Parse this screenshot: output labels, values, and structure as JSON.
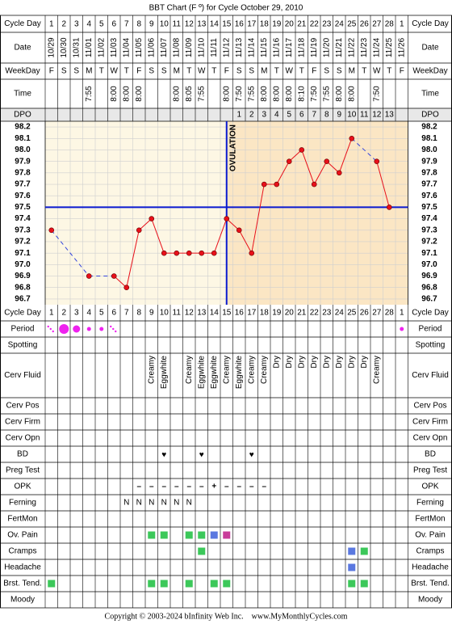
{
  "chart_data": {
    "type": "line",
    "title": "BBT Chart (F º) for Cycle October 29, 2010",
    "top_rows": [
      "Cycle Day",
      "Date",
      "WeekDay",
      "Time",
      "DPO"
    ],
    "bottom_rows": [
      "Cycle Day",
      "Period",
      "Spotting",
      "Cerv Fluid",
      "Cerv Pos",
      "Cerv Firm",
      "Cerv Opn",
      "BD",
      "Preg Test",
      "OPK",
      "Ferning",
      "FertMon",
      "Ov. Pain",
      "Cramps",
      "Headache",
      "Brst. Tend.",
      "Moody"
    ],
    "cycle_days": [
      1,
      2,
      3,
      4,
      5,
      6,
      7,
      8,
      9,
      10,
      11,
      12,
      13,
      14,
      15,
      16,
      17,
      18,
      19,
      20,
      21,
      22,
      23,
      24,
      25,
      26,
      27,
      28,
      1
    ],
    "dates": [
      "10/29",
      "10/30",
      "10/31",
      "11/01",
      "11/02",
      "11/03",
      "11/04",
      "11/05",
      "11/06",
      "11/07",
      "11/08",
      "11/09",
      "11/10",
      "11/11",
      "11/12",
      "11/13",
      "11/14",
      "11/15",
      "11/16",
      "11/17",
      "11/18",
      "11/19",
      "11/20",
      "11/21",
      "11/22",
      "11/23",
      "11/24",
      "11/25",
      "11/26"
    ],
    "weekdays": [
      "F",
      "S",
      "S",
      "M",
      "T",
      "W",
      "T",
      "F",
      "S",
      "S",
      "M",
      "T",
      "W",
      "T",
      "F",
      "S",
      "S",
      "M",
      "T",
      "W",
      "T",
      "F",
      "S",
      "S",
      "M",
      "T",
      "W",
      "T",
      "F"
    ],
    "times": [
      null,
      null,
      null,
      "7:55",
      null,
      "8:00",
      "8:00",
      "8:00",
      null,
      null,
      "8:00",
      "8:05",
      "7:55",
      null,
      "8:00",
      "7:50",
      "7:55",
      "8:00",
      "8:00",
      "8:00",
      "8:10",
      "7:50",
      "7:55",
      "8:00",
      "8:00",
      null,
      "7:50",
      null,
      null
    ],
    "dpo": [
      null,
      null,
      null,
      null,
      null,
      null,
      null,
      null,
      null,
      null,
      null,
      null,
      null,
      null,
      null,
      1,
      2,
      3,
      4,
      5,
      6,
      7,
      8,
      9,
      10,
      11,
      12,
      13,
      null
    ],
    "values": [
      97.3,
      null,
      null,
      96.9,
      null,
      96.9,
      96.8,
      97.3,
      97.4,
      97.1,
      97.1,
      97.1,
      97.1,
      97.1,
      97.4,
      97.3,
      97.1,
      97.7,
      97.7,
      97.9,
      98.0,
      97.7,
      97.9,
      97.8,
      98.1,
      null,
      97.9,
      97.5,
      null
    ],
    "color": "#e8101a",
    "gap_color": "#3344dd",
    "ylim": [
      96.65,
      98.25
    ],
    "yticks": [
      98.2,
      98.1,
      {
        "value": 98,
        "label": "98.0"
      },
      97.9,
      97.8,
      97.7,
      97.6,
      97.5,
      97.4,
      97.3,
      97.2,
      97.1,
      {
        "value": 97,
        "label": "97.0"
      },
      96.9,
      96.8,
      96.7
    ],
    "grid": true,
    "coverline": 97.5,
    "ovulation_day": 15,
    "ovulation_label": "OVULATION",
    "cerv_fluid": [
      null,
      null,
      null,
      null,
      null,
      null,
      null,
      null,
      "Creamy",
      "Eggwhite",
      null,
      "Creamy",
      "Eggwhite",
      "Eggwhite",
      "Creamy",
      "Eggwhite",
      "Creamy",
      "Creamy",
      "Dry",
      "Dry",
      "Dry",
      "Dry",
      "Dry",
      "Dry",
      "Dry",
      "Dry",
      "Creamy",
      null,
      null
    ],
    "opk": [
      null,
      null,
      null,
      null,
      null,
      null,
      null,
      "–",
      "–",
      "–",
      "–",
      "–",
      "–",
      "+",
      "–",
      "–",
      "–",
      "–",
      null,
      null,
      null,
      null,
      null,
      null,
      null,
      null,
      null,
      null,
      null
    ],
    "ferning": [
      null,
      null,
      null,
      null,
      null,
      null,
      "N",
      "N",
      "N",
      "N",
      "N",
      "N",
      null,
      null,
      null,
      null,
      null,
      null,
      null,
      null,
      null,
      null,
      null,
      null,
      null,
      null,
      null,
      null,
      null
    ],
    "footer": "Copyright © 2003-2024 bInfinity Web Inc.    www.MyMonthlyCycles.com"
  }
}
